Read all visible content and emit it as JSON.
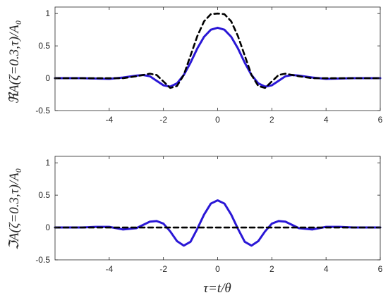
{
  "chart_data": [
    {
      "type": "line",
      "ylabel": "ℜA(ζ=0.3,τ)/A₀",
      "xlabel": "",
      "xlim": [
        -6,
        6
      ],
      "ylim": [
        -0.5,
        1.1
      ],
      "xticks": [
        "-4",
        "-2",
        "0",
        "2",
        "4",
        "6"
      ],
      "yticks": [
        "-0.5",
        "0",
        "0.5",
        "1"
      ],
      "grid": false,
      "series": [
        {
          "style": "solid",
          "color": "#2a17d6",
          "x": [
            -6,
            -5.5,
            -5,
            -4.5,
            -4,
            -3.5,
            -3,
            -2.75,
            -2.5,
            -2.25,
            -2,
            -1.75,
            -1.5,
            -1.25,
            -1,
            -0.75,
            -0.5,
            -0.25,
            0,
            0.25,
            0.5,
            0.75,
            1,
            1.25,
            1.5,
            1.75,
            2,
            2.25,
            2.5,
            2.75,
            3,
            3.5,
            4,
            4.5,
            5,
            5.5,
            6
          ],
          "values": [
            0,
            0,
            0,
            -0.005,
            -0.01,
            0.01,
            0.04,
            0.05,
            0.03,
            -0.04,
            -0.11,
            -0.13,
            -0.08,
            0.05,
            0.24,
            0.46,
            0.64,
            0.75,
            0.78,
            0.75,
            0.64,
            0.46,
            0.24,
            0.05,
            -0.08,
            -0.13,
            -0.11,
            -0.04,
            0.03,
            0.05,
            0.04,
            0.01,
            -0.01,
            -0.005,
            0,
            0,
            0
          ]
        },
        {
          "style": "dashed",
          "color": "#000000",
          "x": [
            -6,
            -5,
            -4,
            -3.5,
            -3,
            -2.5,
            -2.25,
            -2,
            -1.75,
            -1.5,
            -1.25,
            -1,
            -0.75,
            -0.5,
            -0.25,
            0,
            0.25,
            0.5,
            0.75,
            1,
            1.25,
            1.5,
            1.75,
            2,
            2.25,
            2.5,
            3,
            3.5,
            4,
            5,
            6
          ],
          "values": [
            0,
            0,
            0,
            0,
            0.03,
            0.07,
            0.05,
            -0.05,
            -0.15,
            -0.12,
            0.05,
            0.35,
            0.65,
            0.88,
            0.99,
            1.0,
            0.99,
            0.88,
            0.65,
            0.35,
            0.05,
            -0.12,
            -0.15,
            -0.05,
            0.05,
            0.07,
            0.03,
            0,
            0,
            0,
            0
          ]
        }
      ]
    },
    {
      "type": "line",
      "ylabel": "ℑA(ζ=0.3,τ)/A₀",
      "xlabel": "τ=t/θ",
      "xlim": [
        -6,
        6
      ],
      "ylim": [
        -0.5,
        1.1
      ],
      "xticks": [
        "-4",
        "-2",
        "0",
        "2",
        "4",
        "6"
      ],
      "yticks": [
        "-0.5",
        "0",
        "0.5",
        "1"
      ],
      "grid": false,
      "series": [
        {
          "style": "solid",
          "color": "#2a17d6",
          "x": [
            -6,
            -5,
            -4.5,
            -4,
            -3.5,
            -3,
            -2.5,
            -2.25,
            -2,
            -1.75,
            -1.5,
            -1.25,
            -1,
            -0.75,
            -0.5,
            -0.25,
            0,
            0.25,
            0.5,
            0.75,
            1,
            1.25,
            1.5,
            1.75,
            2,
            2.25,
            2.5,
            3,
            3.5,
            4,
            4.5,
            5,
            6
          ],
          "values": [
            0,
            0,
            0.01,
            0.01,
            -0.03,
            -0.01,
            0.09,
            0.1,
            0.06,
            -0.06,
            -0.21,
            -0.28,
            -0.22,
            -0.02,
            0.2,
            0.37,
            0.42,
            0.37,
            0.2,
            -0.02,
            -0.22,
            -0.28,
            -0.21,
            -0.06,
            0.06,
            0.1,
            0.09,
            -0.01,
            -0.03,
            0.01,
            0.01,
            0,
            0
          ]
        },
        {
          "style": "dashed",
          "color": "#000000",
          "x": [
            -6,
            6
          ],
          "values": [
            0,
            0
          ]
        }
      ]
    }
  ]
}
